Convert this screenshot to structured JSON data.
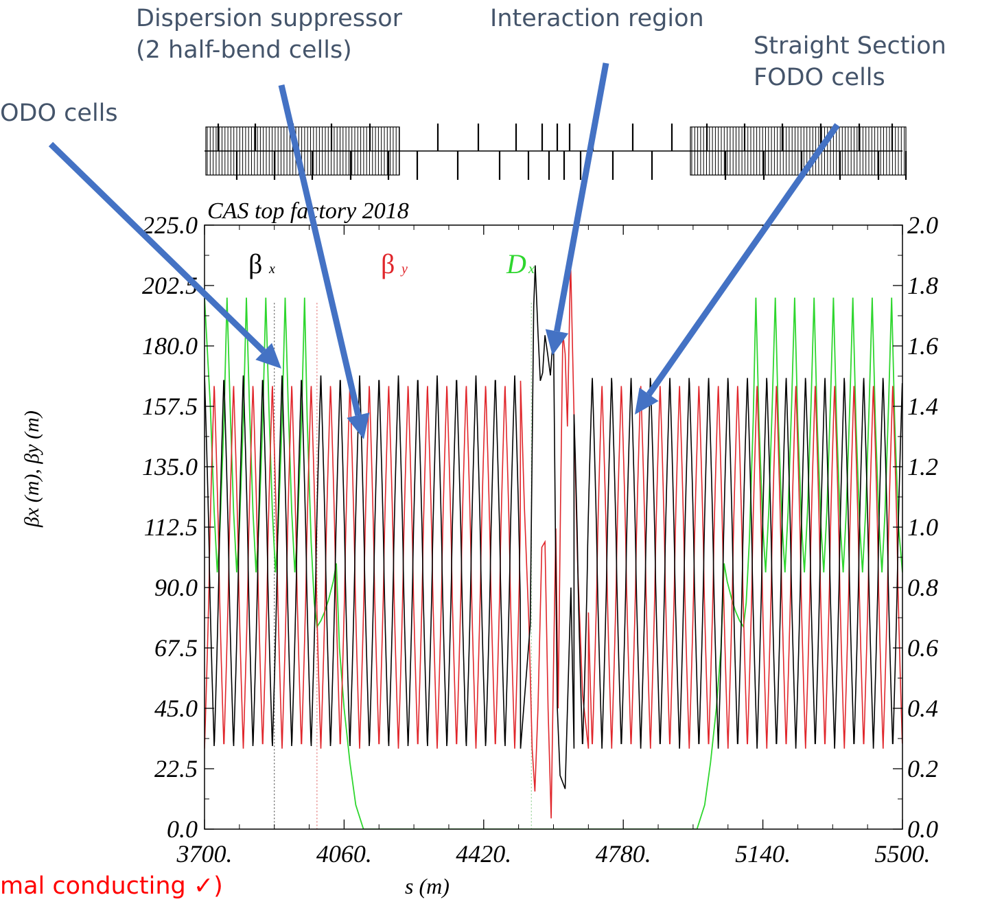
{
  "annotations": {
    "dispersion_line1": "Dispersion suppressor",
    "dispersion_line2": "(2 half-bend cells)",
    "interaction": "Interaction region",
    "straight_line1": "Straight Section",
    "straight_line2": "FODO cells",
    "arc_fodo": "ODO cells",
    "bottom_note": "mal conducting ✓)"
  },
  "colors": {
    "arrow": "#4472c4",
    "annotation_text": "#44546a",
    "beta_x": "#000000",
    "beta_y": "#e0262b",
    "dx": "#2ed62e",
    "note": "#ff0000"
  },
  "chart_data": {
    "type": "line",
    "title": "CAS top factory 2018",
    "xlabel": "s (m)",
    "ylabel_left": "βx (m), βy (m)",
    "xlim": [
      3700,
      5500
    ],
    "ylim_left": [
      0,
      225
    ],
    "ylim_right": [
      0,
      2.0
    ],
    "xticks": [
      "3700.",
      "4060.",
      "4420.",
      "4780.",
      "5140.",
      "5500."
    ],
    "yticks_left": [
      "0.0",
      "22.5",
      "45.0",
      "67.5",
      "90.0",
      "112.5",
      "135.0",
      "157.5",
      "180.0",
      "202.5",
      "225.0"
    ],
    "yticks_right": [
      "0.0",
      "0.2",
      "0.4",
      "0.6",
      "0.8",
      "1.0",
      "1.2",
      "1.4",
      "1.6",
      "1.8",
      "2.0"
    ],
    "legend": [
      {
        "symbol": "β",
        "sub": "x"
      },
      {
        "symbol": "β",
        "sub": "y"
      },
      {
        "symbol": "D",
        "sub": "x"
      }
    ],
    "series": [
      {
        "name": "βx",
        "axis": "left",
        "fodo_cell_period_m": 50,
        "min": 30,
        "max": 169,
        "ir_points": [
          [
            4515,
            30
          ],
          [
            4540,
            76
          ],
          [
            4549,
            195
          ],
          [
            4553,
            210
          ],
          [
            4560,
            185
          ],
          [
            4566,
            167
          ],
          [
            4572,
            170
          ],
          [
            4578,
            184
          ],
          [
            4585,
            177
          ],
          [
            4592,
            169
          ],
          [
            4600,
            185
          ],
          [
            4605,
            110
          ],
          [
            4610,
            45
          ],
          [
            4617,
            20
          ],
          [
            4630,
            15
          ],
          [
            4645,
            90
          ],
          [
            4653,
            30
          ]
        ]
      },
      {
        "name": "βy",
        "axis": "left",
        "fodo_cell_period_m": 50,
        "min": 30,
        "max": 166,
        "ir_points": [
          [
            4515,
            167
          ],
          [
            4525,
            120
          ],
          [
            4537,
            75
          ],
          [
            4545,
            30
          ],
          [
            4552,
            14
          ],
          [
            4560,
            45
          ],
          [
            4570,
            105
          ],
          [
            4578,
            107
          ],
          [
            4586,
            45
          ],
          [
            4594,
            4
          ],
          [
            4600,
            60
          ],
          [
            4606,
            112
          ],
          [
            4612,
            45
          ],
          [
            4618,
            120
          ],
          [
            4624,
            185
          ],
          [
            4630,
            177
          ],
          [
            4636,
            150
          ],
          [
            4644,
            212
          ],
          [
            4652,
            160
          ],
          [
            4662,
            100
          ],
          [
            4675,
            50
          ],
          [
            4690,
            30
          ]
        ]
      },
      {
        "name": "Dx",
        "axis": "right",
        "points": [
          [
            3700,
            1.76
          ],
          [
            3715,
            1.4
          ],
          [
            3725,
            1.05
          ],
          [
            3733,
            0.85
          ],
          [
            3740,
            1.0
          ],
          [
            3750,
            1.35
          ],
          [
            3758,
            1.76
          ],
          [
            3766,
            1.4
          ],
          [
            3775,
            1.05
          ],
          [
            3783,
            0.85
          ],
          [
            3790,
            1.0
          ],
          [
            3800,
            1.35
          ],
          [
            3808,
            1.76
          ],
          [
            3816,
            1.4
          ],
          [
            3825,
            1.05
          ],
          [
            3833,
            0.85
          ],
          [
            3840,
            1.0
          ],
          [
            3850,
            1.35
          ],
          [
            3858,
            1.76
          ],
          [
            3866,
            1.4
          ],
          [
            3875,
            1.05
          ],
          [
            3883,
            0.85
          ],
          [
            3890,
            1.0
          ],
          [
            3900,
            1.35
          ],
          [
            3908,
            1.76
          ],
          [
            3916,
            1.4
          ],
          [
            3925,
            1.05
          ],
          [
            3933,
            0.85
          ],
          [
            3940,
            1.0
          ],
          [
            3950,
            1.35
          ],
          [
            3958,
            1.76
          ],
          [
            3965,
            1.35
          ],
          [
            3975,
            0.95
          ],
          [
            3983,
            0.75
          ],
          [
            3990,
            0.67
          ],
          [
            4000,
            0.69
          ],
          [
            4010,
            0.72
          ],
          [
            4020,
            0.76
          ],
          [
            4032,
            0.82
          ],
          [
            4040,
            0.88
          ],
          [
            4048,
            0.6
          ],
          [
            4060,
            0.4
          ],
          [
            4075,
            0.22
          ],
          [
            4090,
            0.08
          ],
          [
            4110,
            0.0
          ],
          [
            4970,
            0.0
          ],
          [
            4990,
            0.08
          ],
          [
            5005,
            0.22
          ],
          [
            5020,
            0.4
          ],
          [
            5032,
            0.6
          ],
          [
            5040,
            0.88
          ],
          [
            5048,
            0.82
          ],
          [
            5060,
            0.76
          ],
          [
            5070,
            0.72
          ],
          [
            5080,
            0.69
          ],
          [
            5090,
            0.67
          ],
          [
            5097,
            0.75
          ],
          [
            5105,
            0.95
          ],
          [
            5115,
            1.35
          ],
          [
            5122,
            1.76
          ],
          [
            5130,
            1.35
          ],
          [
            5140,
            1.0
          ],
          [
            5147,
            0.85
          ],
          [
            5155,
            1.05
          ],
          [
            5164,
            1.4
          ],
          [
            5172,
            1.76
          ],
          [
            5180,
            1.35
          ],
          [
            5190,
            1.0
          ],
          [
            5197,
            0.85
          ],
          [
            5205,
            1.05
          ],
          [
            5214,
            1.4
          ],
          [
            5222,
            1.76
          ],
          [
            5230,
            1.35
          ],
          [
            5240,
            1.0
          ],
          [
            5247,
            0.85
          ],
          [
            5255,
            1.05
          ],
          [
            5264,
            1.4
          ],
          [
            5272,
            1.76
          ],
          [
            5280,
            1.35
          ],
          [
            5290,
            1.0
          ],
          [
            5297,
            0.85
          ],
          [
            5305,
            1.05
          ],
          [
            5314,
            1.4
          ],
          [
            5322,
            1.76
          ],
          [
            5330,
            1.35
          ],
          [
            5340,
            1.0
          ],
          [
            5347,
            0.85
          ],
          [
            5355,
            1.05
          ],
          [
            5364,
            1.4
          ],
          [
            5372,
            1.76
          ],
          [
            5380,
            1.35
          ],
          [
            5390,
            1.0
          ],
          [
            5397,
            0.85
          ],
          [
            5405,
            1.05
          ],
          [
            5414,
            1.4
          ],
          [
            5422,
            1.76
          ],
          [
            5430,
            1.35
          ],
          [
            5440,
            1.0
          ],
          [
            5447,
            0.85
          ],
          [
            5455,
            1.05
          ],
          [
            5464,
            1.4
          ],
          [
            5472,
            1.76
          ],
          [
            5480,
            1.35
          ],
          [
            5490,
            1.0
          ],
          [
            5500,
            0.85
          ]
        ]
      }
    ]
  }
}
